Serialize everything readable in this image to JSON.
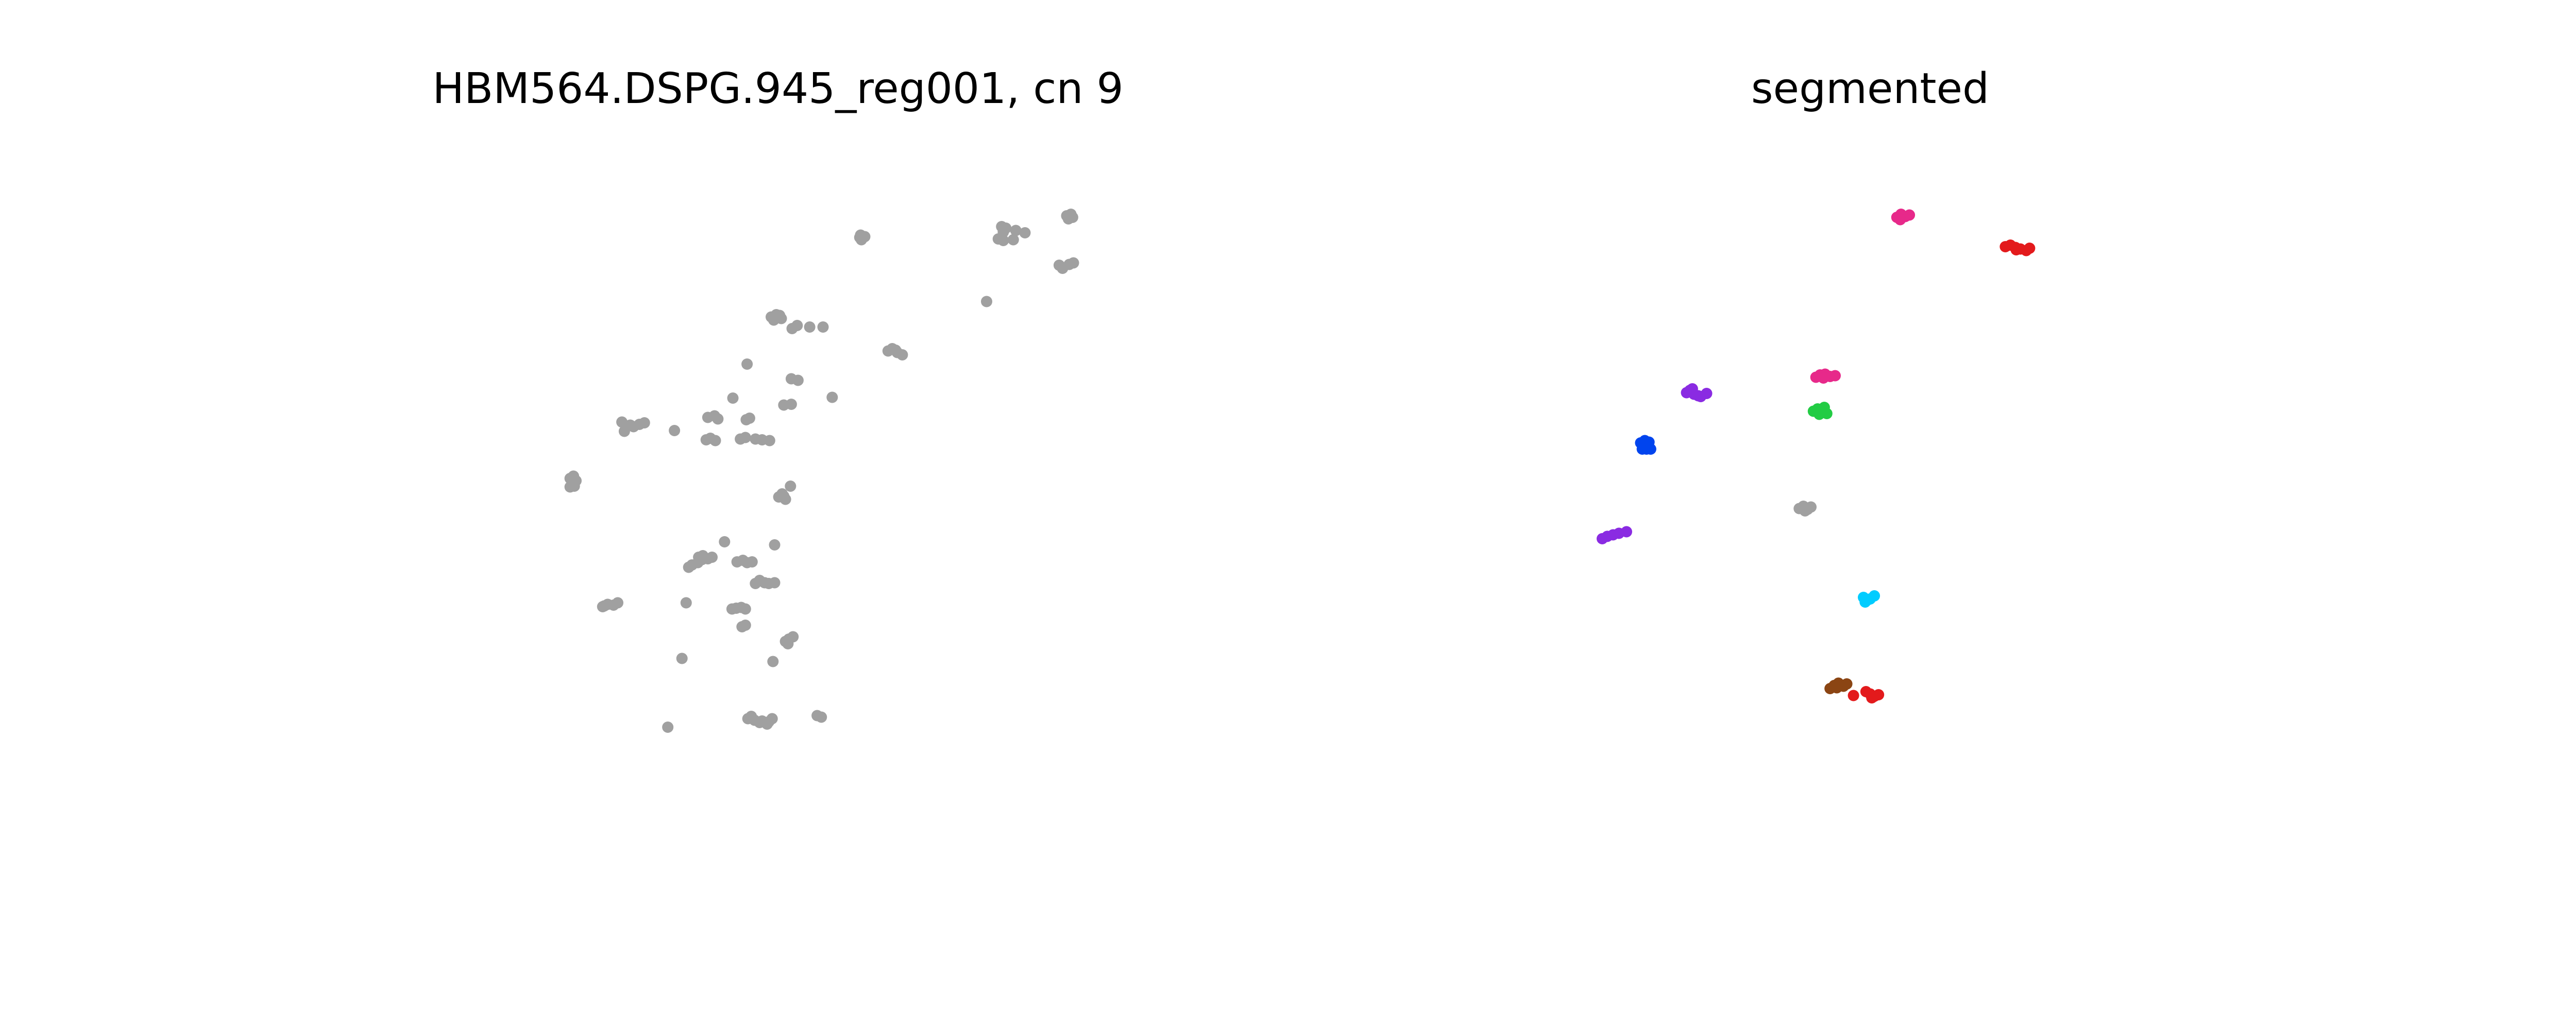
{
  "figure": {
    "background": "#ffffff",
    "point_radius": 1
  },
  "chart_data": [
    {
      "type": "scatter",
      "title": "HBM564.DSPG.945_reg001, cn 9",
      "xlabel": "",
      "ylabel": "",
      "axes_visible": false,
      "grid": false,
      "xlim": [
        0,
        100
      ],
      "ylim": [
        0,
        100
      ],
      "series": [
        {
          "color": "#a0a0a0",
          "points": [
            [
              59.8,
              88.6
            ],
            [
              60.4,
              88.7
            ],
            [
              60.0,
              88.3
            ],
            [
              59.9,
              88.9
            ],
            [
              76.8,
              90.0
            ],
            [
              77.3,
              89.8
            ],
            [
              77.0,
              89.3
            ],
            [
              78.5,
              89.5
            ],
            [
              79.6,
              89.2
            ],
            [
              76.4,
              88.4
            ],
            [
              77.0,
              88.2
            ],
            [
              78.2,
              88.3
            ],
            [
              84.6,
              91.4
            ],
            [
              85.1,
              91.6
            ],
            [
              84.8,
              91.0
            ],
            [
              85.3,
              91.2
            ],
            [
              83.7,
              85.0
            ],
            [
              84.1,
              84.6
            ],
            [
              84.9,
              85.1
            ],
            [
              85.4,
              85.3
            ],
            [
              75.0,
              80.3
            ],
            [
              49.2,
              78.3
            ],
            [
              49.8,
              78.6
            ],
            [
              50.4,
              78.1
            ],
            [
              49.5,
              77.9
            ],
            [
              50.2,
              78.5
            ],
            [
              51.7,
              76.8
            ],
            [
              52.3,
              77.2
            ],
            [
              53.8,
              77.0
            ],
            [
              55.4,
              77.0
            ],
            [
              63.2,
              73.9
            ],
            [
              63.7,
              74.2
            ],
            [
              64.3,
              73.7
            ],
            [
              64.9,
              73.4
            ],
            [
              64.1,
              74.0
            ],
            [
              46.3,
              72.2
            ],
            [
              51.6,
              70.3
            ],
            [
              52.4,
              70.1
            ],
            [
              44.6,
              67.8
            ],
            [
              50.7,
              66.9
            ],
            [
              51.6,
              67.0
            ],
            [
              56.5,
              67.9
            ],
            [
              31.3,
              64.7
            ],
            [
              31.8,
              64.2
            ],
            [
              32.3,
              64.3
            ],
            [
              31.6,
              63.5
            ],
            [
              33.4,
              64.4
            ],
            [
              34.0,
              64.6
            ],
            [
              32.7,
              64.1
            ],
            [
              41.6,
              65.3
            ],
            [
              42.4,
              65.5
            ],
            [
              42.8,
              65.1
            ],
            [
              46.2,
              65.0
            ],
            [
              46.6,
              65.2
            ],
            [
              37.6,
              63.6
            ],
            [
              41.4,
              62.4
            ],
            [
              41.9,
              62.6
            ],
            [
              42.5,
              62.3
            ],
            [
              45.5,
              62.5
            ],
            [
              46.1,
              62.7
            ],
            [
              47.3,
              62.5
            ],
            [
              48.1,
              62.4
            ],
            [
              49.0,
              62.3
            ],
            [
              25.1,
              57.4
            ],
            [
              25.5,
              57.7
            ],
            [
              25.8,
              57.1
            ],
            [
              25.1,
              56.3
            ],
            [
              25.6,
              56.4
            ],
            [
              50.5,
              55.4
            ],
            [
              50.1,
              55.0
            ],
            [
              50.9,
              54.7
            ],
            [
              51.5,
              56.4
            ],
            [
              50.7,
              55.1
            ],
            [
              29.0,
              40.8
            ],
            [
              29.6,
              41.1
            ],
            [
              30.3,
              41.0
            ],
            [
              30.8,
              41.3
            ],
            [
              29.2,
              40.9
            ],
            [
              40.5,
              47.2
            ],
            [
              41.0,
              47.4
            ],
            [
              41.6,
              47.0
            ],
            [
              42.1,
              47.2
            ],
            [
              40.9,
              46.9
            ],
            [
              43.6,
              49.2
            ],
            [
              39.7,
              46.2
            ],
            [
              40.4,
              46.5
            ],
            [
              39.3,
              45.9
            ],
            [
              45.1,
              46.6
            ],
            [
              45.8,
              46.8
            ],
            [
              46.3,
              46.5
            ],
            [
              46.9,
              46.6
            ],
            [
              49.6,
              48.8
            ],
            [
              39.0,
              41.3
            ],
            [
              47.3,
              43.8
            ],
            [
              47.8,
              44.2
            ],
            [
              48.4,
              43.9
            ],
            [
              48.9,
              43.8
            ],
            [
              49.6,
              43.9
            ],
            [
              44.5,
              40.5
            ],
            [
              45.0,
              40.6
            ],
            [
              45.6,
              40.7
            ],
            [
              46.1,
              40.5
            ],
            [
              45.7,
              38.2
            ],
            [
              46.1,
              38.4
            ],
            [
              50.9,
              36.3
            ],
            [
              51.3,
              36.6
            ],
            [
              51.8,
              36.9
            ],
            [
              51.2,
              36.0
            ],
            [
              38.5,
              34.1
            ],
            [
              49.4,
              33.7
            ],
            [
              46.4,
              26.3
            ],
            [
              46.8,
              26.6
            ],
            [
              47.2,
              26.1
            ],
            [
              48.1,
              26.0
            ],
            [
              48.9,
              25.9
            ],
            [
              49.3,
              26.3
            ],
            [
              48.7,
              25.6
            ],
            [
              47.8,
              25.8
            ],
            [
              54.7,
              26.7
            ],
            [
              55.2,
              26.5
            ],
            [
              36.8,
              25.2
            ]
          ]
        }
      ]
    },
    {
      "type": "scatter",
      "title": "segmented",
      "xlabel": "",
      "ylabel": "",
      "axes_visible": false,
      "grid": false,
      "xlim": [
        0,
        100
      ],
      "ylim": [
        0,
        100
      ],
      "series": [
        {
          "color": "#e7298a",
          "points": [
            [
              53.2,
              91.2
            ],
            [
              53.7,
              91.6
            ],
            [
              54.2,
              91.3
            ],
            [
              54.7,
              91.5
            ],
            [
              53.6,
              90.9
            ]
          ]
        },
        {
          "color": "#e31a1c",
          "points": [
            [
              66.2,
              87.4
            ],
            [
              66.8,
              87.6
            ],
            [
              67.4,
              87.3
            ],
            [
              68.0,
              87.1
            ],
            [
              68.7,
              86.9
            ],
            [
              69.1,
              87.2
            ],
            [
              67.5,
              87.0
            ]
          ]
        },
        {
          "color": "#e7298a",
          "points": [
            [
              43.5,
              70.5
            ],
            [
              44.0,
              70.8
            ],
            [
              44.6,
              70.9
            ],
            [
              45.2,
              70.6
            ],
            [
              45.8,
              70.7
            ],
            [
              44.4,
              70.4
            ]
          ]
        },
        {
          "color": "#8a2be2",
          "points": [
            [
              28.0,
              68.5
            ],
            [
              28.4,
              68.8
            ],
            [
              28.9,
              68.3
            ],
            [
              29.4,
              68.1
            ],
            [
              29.7,
              68.0
            ],
            [
              30.4,
              68.4
            ],
            [
              28.7,
              69.0
            ]
          ]
        },
        {
          "color": "#22cc44",
          "points": [
            [
              43.2,
              66.1
            ],
            [
              43.7,
              66.4
            ],
            [
              44.1,
              66.0
            ],
            [
              44.5,
              66.6
            ],
            [
              44.8,
              65.8
            ],
            [
              43.9,
              65.7
            ]
          ]
        },
        {
          "color": "#0044ee",
          "points": [
            [
              22.5,
              62.0
            ],
            [
              23.0,
              62.3
            ],
            [
              23.5,
              62.1
            ],
            [
              22.7,
              61.2
            ],
            [
              23.2,
              61.2
            ],
            [
              23.7,
              61.2
            ]
          ]
        },
        {
          "color": "#8a2be2",
          "points": [
            [
              17.9,
              49.6
            ],
            [
              18.5,
              49.9
            ],
            [
              19.2,
              50.1
            ],
            [
              19.9,
              50.3
            ],
            [
              20.8,
              50.5
            ]
          ]
        },
        {
          "color": "#a0a0a0",
          "points": [
            [
              41.5,
              53.5
            ],
            [
              42.0,
              53.8
            ],
            [
              42.5,
              53.4
            ],
            [
              42.9,
              53.7
            ],
            [
              42.2,
              53.2
            ]
          ]
        },
        {
          "color": "#00ccff",
          "points": [
            [
              49.2,
              42.0
            ],
            [
              49.6,
              41.6
            ],
            [
              50.0,
              41.8
            ],
            [
              50.5,
              42.2
            ],
            [
              49.4,
              41.4
            ]
          ]
        },
        {
          "color": "#8b4513",
          "points": [
            [
              45.2,
              30.2
            ],
            [
              45.7,
              30.6
            ],
            [
              46.2,
              30.9
            ],
            [
              46.8,
              30.5
            ],
            [
              47.2,
              30.8
            ],
            [
              46.0,
              30.3
            ]
          ]
        },
        {
          "color": "#e31a1c",
          "points": [
            [
              48.0,
              29.3
            ],
            [
              49.5,
              29.8
            ],
            [
              50.0,
              29.5
            ],
            [
              50.5,
              29.2
            ],
            [
              51.0,
              29.4
            ],
            [
              50.2,
              29.0
            ]
          ]
        }
      ]
    }
  ]
}
